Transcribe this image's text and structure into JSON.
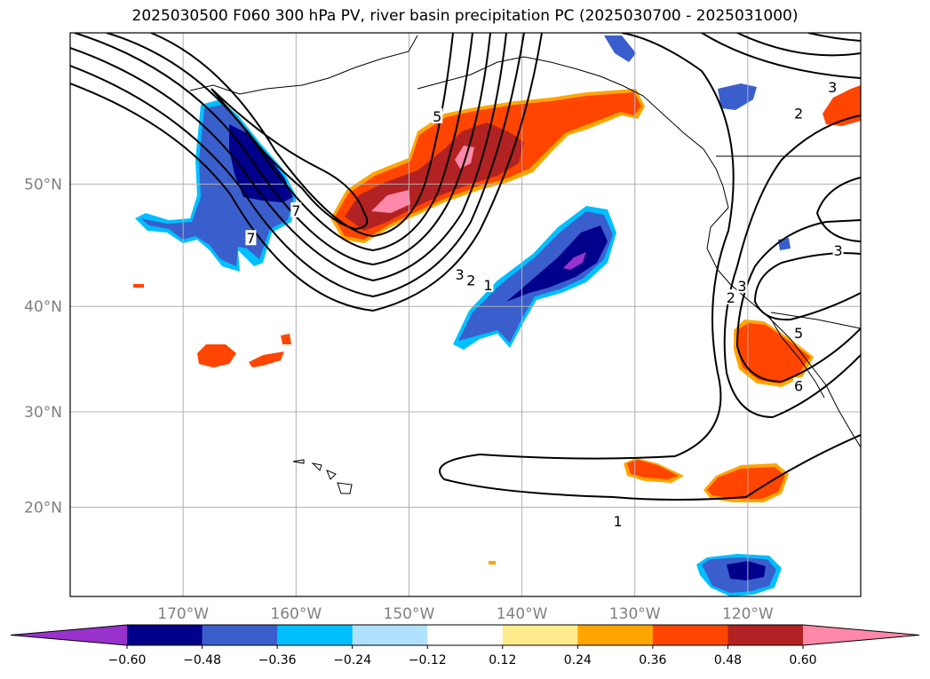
{
  "title": "2025030500 F060 300 hPa PV, river basin precipitation PC (2025030700 - 2025031000)",
  "map": {
    "lon_range": [
      -180,
      -110
    ],
    "lat_range": [
      10,
      60
    ],
    "lon_ticks": [
      {
        "lon": -170,
        "label": "170°W"
      },
      {
        "lon": -160,
        "label": "160°W"
      },
      {
        "lon": -150,
        "label": "150°W"
      },
      {
        "lon": -140,
        "label": "140°W"
      },
      {
        "lon": -130,
        "label": "130°W"
      },
      {
        "lon": -120,
        "label": "120°W"
      }
    ],
    "lat_ticks": [
      {
        "lat": 20,
        "label": "20°N"
      },
      {
        "lat": 30,
        "label": "30°N"
      },
      {
        "lat": 40,
        "label": "40°N"
      },
      {
        "lat": 50,
        "label": "50°N"
      }
    ],
    "gridlines": true,
    "contour_labels": [
      {
        "text": "7",
        "lon": -160,
        "lat": 48.0
      },
      {
        "text": "7",
        "lon": -164,
        "lat": 45.8
      },
      {
        "text": "5",
        "lon": -147.5,
        "lat": 54.8
      },
      {
        "text": "3",
        "lon": -145.5,
        "lat": 42.8
      },
      {
        "text": "2",
        "lon": -144.5,
        "lat": 42.3
      },
      {
        "text": "1",
        "lon": -143.0,
        "lat": 41.9
      },
      {
        "text": "1",
        "lon": -131.5,
        "lat": 18.5
      },
      {
        "text": "3",
        "lon": -112.5,
        "lat": 56.7
      },
      {
        "text": "2",
        "lon": -115.5,
        "lat": 55.0
      },
      {
        "text": "3",
        "lon": -112.0,
        "lat": 44.8
      },
      {
        "text": "2",
        "lon": -121.5,
        "lat": 40.8
      },
      {
        "text": "3",
        "lon": -120.5,
        "lat": 41.8
      },
      {
        "text": "5",
        "lon": -115.5,
        "lat": 37.6
      },
      {
        "text": "6",
        "lon": -115.5,
        "lat": 32.6
      }
    ],
    "precip_colors": {
      "neg_extreme": "#9932cc",
      "neg_060": "#00008b",
      "neg_048": "#3a5fcd",
      "neg_036": "#00bfff",
      "neg_024": "#b0e2ff",
      "pos_012": "#ffeb8b",
      "pos_024": "#ffa500",
      "pos_036": "#ff4500",
      "pos_048": "#b22222",
      "pos_060": "#ff88aa"
    },
    "pv_contour_color": "#000000"
  },
  "colorbar": {
    "colors": [
      "#9932cc",
      "#00008b",
      "#3a5fcd",
      "#00bfff",
      "#b0e2ff",
      "#ffffff",
      "#ffeb8b",
      "#ffa500",
      "#ff4500",
      "#b22222",
      "#ff88aa"
    ],
    "ticks": [
      {
        "value": -0.6,
        "label": "−0.60"
      },
      {
        "value": -0.48,
        "label": "−0.48"
      },
      {
        "value": -0.36,
        "label": "−0.36"
      },
      {
        "value": -0.24,
        "label": "−0.24"
      },
      {
        "value": -0.12,
        "label": "−0.12"
      },
      {
        "value": 0.12,
        "label": "0.12"
      },
      {
        "value": 0.24,
        "label": "0.24"
      },
      {
        "value": 0.36,
        "label": "0.36"
      },
      {
        "value": 0.48,
        "label": "0.48"
      },
      {
        "value": 0.6,
        "label": "0.60"
      }
    ],
    "extend": "both"
  }
}
